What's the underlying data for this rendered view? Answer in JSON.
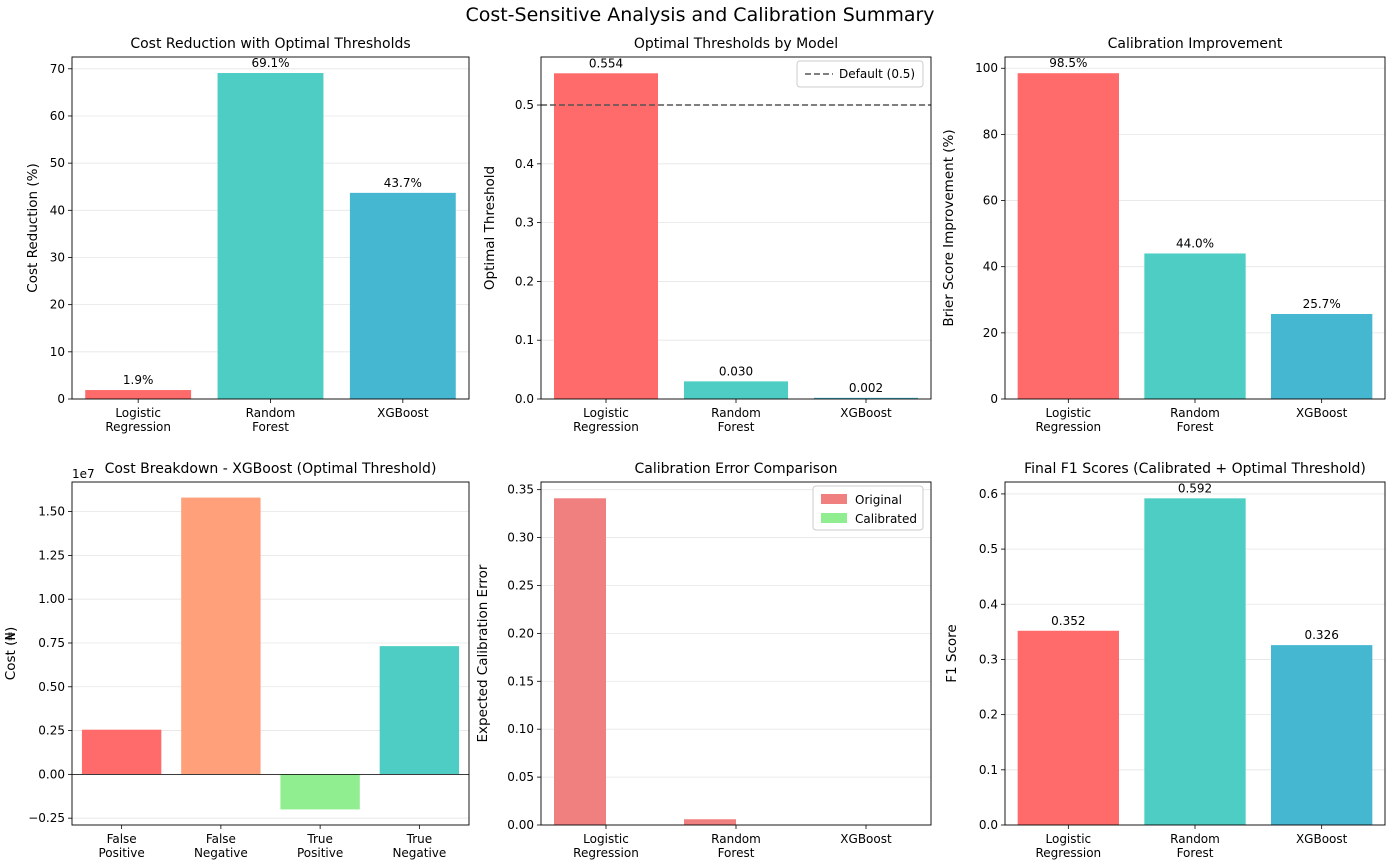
{
  "figure": {
    "suptitle": "Cost-Sensitive Analysis and Calibration Summary"
  },
  "chart_data": [
    {
      "type": "bar",
      "title": "Cost Reduction with Optimal Thresholds",
      "categories": [
        "Logistic Regression",
        "Random Forest",
        "XGBoost"
      ],
      "values": [
        1.9,
        69.1,
        43.7
      ],
      "data_labels": [
        "1.9%",
        "69.1%",
        "43.7%"
      ],
      "colors": [
        "#ff6b6b",
        "#4ecdc4",
        "#45b7d1"
      ],
      "xlabel": "",
      "ylabel": "Cost Reduction (%)",
      "ylim": [
        0,
        72.5
      ],
      "yticks": [
        0,
        10,
        20,
        30,
        40,
        50,
        60,
        70
      ],
      "ytick_labels": [
        "0",
        "10",
        "20",
        "30",
        "40",
        "50",
        "60",
        "70"
      ],
      "grid": "y"
    },
    {
      "type": "bar",
      "title": "Optimal Thresholds by Model",
      "categories": [
        "Logistic Regression",
        "Random Forest",
        "XGBoost"
      ],
      "values": [
        0.554,
        0.03,
        0.002
      ],
      "data_labels": [
        "0.554",
        "0.030",
        "0.002"
      ],
      "colors": [
        "#ff6b6b",
        "#4ecdc4",
        "#45b7d1"
      ],
      "xlabel": "",
      "ylabel": "Optimal Threshold",
      "ylim": [
        0,
        0.5817
      ],
      "yticks": [
        0,
        0.1,
        0.2,
        0.3,
        0.4,
        0.5
      ],
      "ytick_labels": [
        "0.0",
        "0.1",
        "0.2",
        "0.3",
        "0.4",
        "0.5"
      ],
      "reference_line": {
        "y": 0.5,
        "label": "Default (0.5)",
        "color": "#555555"
      },
      "legend": "top-right",
      "grid": "y"
    },
    {
      "type": "bar",
      "title": "Calibration Improvement",
      "categories": [
        "Logistic Regression",
        "Random Forest",
        "XGBoost"
      ],
      "values": [
        98.5,
        44.0,
        25.7
      ],
      "data_labels": [
        "98.5%",
        "44.0%",
        "25.7%"
      ],
      "colors": [
        "#ff6b6b",
        "#4ecdc4",
        "#45b7d1"
      ],
      "xlabel": "",
      "ylabel": "Brier Score Improvement (%)",
      "ylim": [
        0,
        103.4
      ],
      "yticks": [
        0,
        20,
        40,
        60,
        80,
        100
      ],
      "ytick_labels": [
        "0",
        "20",
        "40",
        "60",
        "80",
        "100"
      ],
      "grid": "y"
    },
    {
      "type": "bar",
      "title": "Cost Breakdown - XGBoost (Optimal Threshold)",
      "categories": [
        "False Positive",
        "False Negative",
        "True Positive",
        "True Negative"
      ],
      "values": [
        2550000,
        15800000,
        -2000000,
        7320000
      ],
      "offset_text": "1e7",
      "colors": [
        "#ff6b6b",
        "#ffa07a",
        "#90ee90",
        "#4ecdc4"
      ],
      "xlabel": "",
      "ylabel": "Cost (₦)",
      "ylim": [
        -2890000,
        16690000
      ],
      "yticks": [
        -2500000,
        0,
        2500000,
        5000000,
        7500000,
        10000000,
        12500000,
        15000000
      ],
      "ytick_labels": [
        "−0.25",
        "0.00",
        "0.25",
        "0.50",
        "0.75",
        "1.00",
        "1.25",
        "1.50"
      ],
      "zero_line": true,
      "grid": "y"
    },
    {
      "type": "bar",
      "title": "Calibration Error Comparison",
      "categories": [
        "Logistic Regression",
        "Random Forest",
        "XGBoost"
      ],
      "series": [
        {
          "name": "Original",
          "values": [
            0.341,
            0.006,
            0.0
          ],
          "color": "#f08080"
        },
        {
          "name": "Calibrated",
          "values": [
            0.0,
            0.0,
            0.0
          ],
          "color": "#90ee90"
        }
      ],
      "xlabel": "",
      "ylabel": "Expected Calibration Error",
      "ylim": [
        0,
        0.358
      ],
      "yticks": [
        0,
        0.05,
        0.1,
        0.15,
        0.2,
        0.25,
        0.3,
        0.35
      ],
      "ytick_labels": [
        "0.00",
        "0.05",
        "0.10",
        "0.15",
        "0.20",
        "0.25",
        "0.30",
        "0.35"
      ],
      "legend": "top-right",
      "grid": "y"
    },
    {
      "type": "bar",
      "title": "Final F1 Scores (Calibrated + Optimal Threshold)",
      "categories": [
        "Logistic Regression",
        "Random Forest",
        "XGBoost"
      ],
      "values": [
        0.352,
        0.592,
        0.326
      ],
      "data_labels": [
        "0.352",
        "0.592",
        "0.326"
      ],
      "colors": [
        "#ff6b6b",
        "#4ecdc4",
        "#45b7d1"
      ],
      "xlabel": "",
      "ylabel": "F1 Score",
      "ylim": [
        0,
        0.6216
      ],
      "yticks": [
        0,
        0.1,
        0.2,
        0.3,
        0.4,
        0.5,
        0.6
      ],
      "ytick_labels": [
        "0.0",
        "0.1",
        "0.2",
        "0.3",
        "0.4",
        "0.5",
        "0.6"
      ],
      "grid": "y"
    }
  ]
}
